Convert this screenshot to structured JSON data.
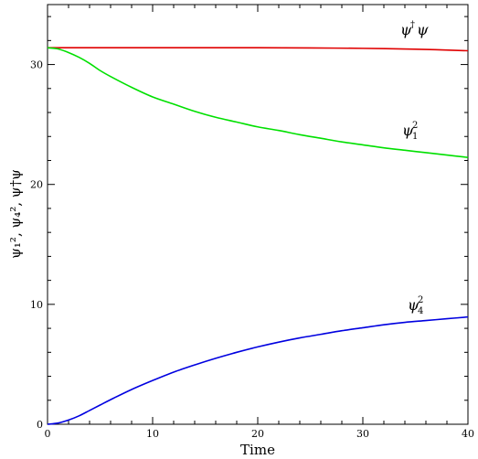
{
  "chart_data": {
    "type": "line",
    "title": "",
    "xlabel": "Time",
    "ylabel": "ψ₁², ψ₄², ψ†ψ",
    "xlim": [
      0,
      40
    ],
    "ylim": [
      0,
      35
    ],
    "x_ticks": [
      0,
      10,
      20,
      30,
      40
    ],
    "y_ticks": [
      0,
      10,
      20,
      30
    ],
    "grid": false,
    "series": [
      {
        "name": "ψ†ψ",
        "label_main": "ψ",
        "label_sup": "†",
        "label_tail": "ψ",
        "color": "#e00000",
        "x": [
          0,
          5,
          10,
          15,
          20,
          25,
          30,
          35,
          40
        ],
        "y": [
          31.4,
          31.4,
          31.4,
          31.4,
          31.4,
          31.38,
          31.35,
          31.28,
          31.15
        ]
      },
      {
        "name": "ψ₁²",
        "label_main": "ψ",
        "label_sup": "2",
        "label_sub": "1",
        "color": "#00e000",
        "x": [
          0,
          1,
          2,
          3,
          4,
          5,
          6,
          8,
          10,
          12,
          14,
          16,
          18,
          20,
          22,
          24,
          26,
          28,
          30,
          32,
          34,
          36,
          38,
          40
        ],
        "y": [
          31.4,
          31.3,
          31.0,
          30.6,
          30.1,
          29.5,
          29.0,
          28.1,
          27.3,
          26.7,
          26.1,
          25.6,
          25.2,
          24.8,
          24.5,
          24.15,
          23.85,
          23.55,
          23.3,
          23.05,
          22.85,
          22.65,
          22.45,
          22.25
        ]
      },
      {
        "name": "ψ₄²",
        "label_main": "ψ",
        "label_sup": "2",
        "label_sub": "4",
        "color": "#0000e0",
        "x": [
          0,
          1,
          2,
          3,
          4,
          5,
          6,
          8,
          10,
          12,
          14,
          16,
          18,
          20,
          22,
          24,
          26,
          28,
          30,
          32,
          34,
          36,
          38,
          40
        ],
        "y": [
          0,
          0.1,
          0.35,
          0.7,
          1.15,
          1.6,
          2.05,
          2.9,
          3.65,
          4.35,
          4.95,
          5.5,
          6.0,
          6.45,
          6.85,
          7.2,
          7.5,
          7.8,
          8.05,
          8.3,
          8.5,
          8.65,
          8.8,
          8.95
        ]
      }
    ]
  }
}
